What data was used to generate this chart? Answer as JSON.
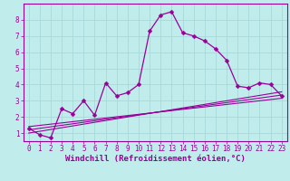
{
  "xlabel": "Windchill (Refroidissement éolien,°C)",
  "bg_color": "#c0ecec",
  "grid_color": "#a8d8d8",
  "line_color": "#990099",
  "xticks": [
    0,
    1,
    2,
    3,
    4,
    5,
    6,
    7,
    8,
    9,
    10,
    11,
    12,
    13,
    14,
    15,
    16,
    17,
    18,
    19,
    20,
    21,
    22,
    23
  ],
  "yticks": [
    1,
    2,
    3,
    4,
    5,
    6,
    7,
    8
  ],
  "main_x": [
    0,
    1,
    2,
    3,
    4,
    5,
    6,
    7,
    8,
    9,
    10,
    11,
    12,
    13,
    14,
    15,
    16,
    17,
    18,
    19,
    20,
    21,
    22,
    23
  ],
  "main_y": [
    1.3,
    0.9,
    0.7,
    2.5,
    2.2,
    3.0,
    2.1,
    4.1,
    3.3,
    3.5,
    4.0,
    7.3,
    8.3,
    8.5,
    7.2,
    7.0,
    6.7,
    6.2,
    5.5,
    3.9,
    3.8,
    4.1,
    4.0,
    3.3
  ],
  "trend1_x": [
    0,
    23
  ],
  "trend1_y": [
    1.0,
    3.55
  ],
  "trend2_x": [
    0,
    23
  ],
  "trend2_y": [
    1.2,
    3.35
  ],
  "trend3_x": [
    0,
    23
  ],
  "trend3_y": [
    1.4,
    3.15
  ],
  "markersize": 2.5,
  "linewidth": 0.9,
  "xlabel_fontsize": 6.5,
  "tick_fontsize": 5.5
}
